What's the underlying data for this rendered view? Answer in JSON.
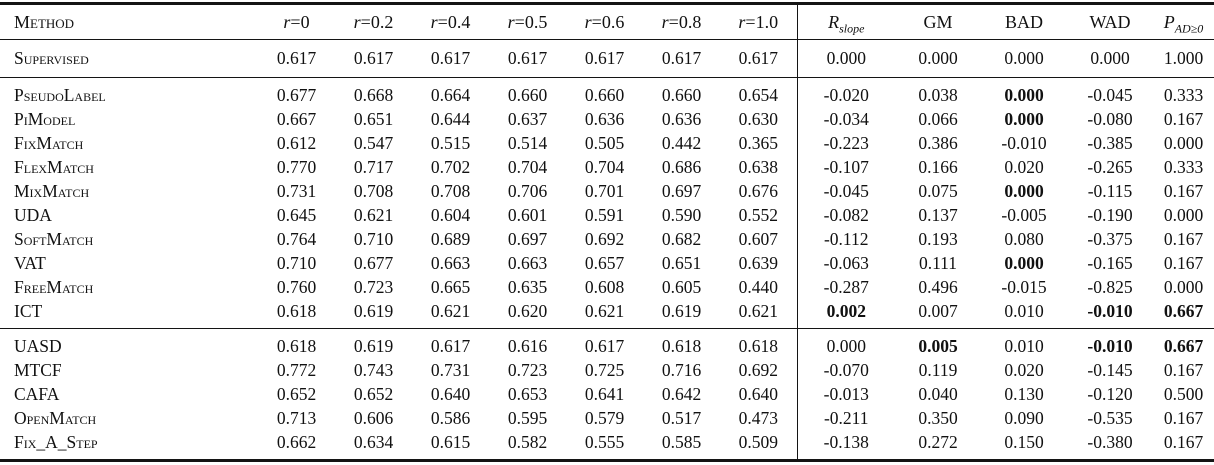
{
  "colors": {
    "text": "#111111",
    "rule": "#141414",
    "background": "#ffffff"
  },
  "table": {
    "columns": [
      {
        "key": "method",
        "type": "method",
        "label": "Method"
      },
      {
        "key": "r0",
        "type": "math",
        "base": "r",
        "rest": "=0"
      },
      {
        "key": "r02",
        "type": "math",
        "base": "r",
        "rest": "=0.2"
      },
      {
        "key": "r04",
        "type": "math",
        "base": "r",
        "rest": "=0.4"
      },
      {
        "key": "r05",
        "type": "math",
        "base": "r",
        "rest": "=0.5"
      },
      {
        "key": "r06",
        "type": "math",
        "base": "r",
        "rest": "=0.6"
      },
      {
        "key": "r08",
        "type": "math",
        "base": "r",
        "rest": "=0.8"
      },
      {
        "key": "r10",
        "type": "math",
        "base": "r",
        "rest": "=1.0"
      },
      {
        "key": "r-slope",
        "type": "math",
        "base": "R",
        "sub": "slope",
        "divider": true
      },
      {
        "key": "gm",
        "type": "plain",
        "label": "GM"
      },
      {
        "key": "bad",
        "type": "plain",
        "label": "BAD"
      },
      {
        "key": "wad",
        "type": "plain",
        "label": "WAD"
      },
      {
        "key": "p-ad-ge0",
        "type": "math",
        "base": "P",
        "sub": "AD≥0"
      }
    ],
    "groups": [
      {
        "rows": [
          {
            "method": "Supervised",
            "values": [
              "0.617",
              "0.617",
              "0.617",
              "0.617",
              "0.617",
              "0.617",
              "0.617"
            ],
            "metrics": [
              "0.000",
              "0.000",
              "0.000",
              "0.000",
              "1.000"
            ],
            "bold_metrics": []
          }
        ]
      },
      {
        "rows": [
          {
            "method": "PseudoLabel",
            "values": [
              "0.677",
              "0.668",
              "0.664",
              "0.660",
              "0.660",
              "0.660",
              "0.654"
            ],
            "metrics": [
              "-0.020",
              "0.038",
              "0.000",
              "-0.045",
              "0.333"
            ],
            "bold_metrics": [
              2
            ]
          },
          {
            "method": "PiModel",
            "values": [
              "0.667",
              "0.651",
              "0.644",
              "0.637",
              "0.636",
              "0.636",
              "0.630"
            ],
            "metrics": [
              "-0.034",
              "0.066",
              "0.000",
              "-0.080",
              "0.167"
            ],
            "bold_metrics": [
              2
            ]
          },
          {
            "method": "FixMatch",
            "values": [
              "0.612",
              "0.547",
              "0.515",
              "0.514",
              "0.505",
              "0.442",
              "0.365"
            ],
            "metrics": [
              "-0.223",
              "0.386",
              "-0.010",
              "-0.385",
              "0.000"
            ],
            "bold_metrics": []
          },
          {
            "method": "FlexMatch",
            "values": [
              "0.770",
              "0.717",
              "0.702",
              "0.704",
              "0.704",
              "0.686",
              "0.638"
            ],
            "metrics": [
              "-0.107",
              "0.166",
              "0.020",
              "-0.265",
              "0.333"
            ],
            "bold_metrics": []
          },
          {
            "method": "MixMatch",
            "values": [
              "0.731",
              "0.708",
              "0.708",
              "0.706",
              "0.701",
              "0.697",
              "0.676"
            ],
            "metrics": [
              "-0.045",
              "0.075",
              "0.000",
              "-0.115",
              "0.167"
            ],
            "bold_metrics": [
              2
            ]
          },
          {
            "method": "UDA",
            "values": [
              "0.645",
              "0.621",
              "0.604",
              "0.601",
              "0.591",
              "0.590",
              "0.552"
            ],
            "metrics": [
              "-0.082",
              "0.137",
              "-0.005",
              "-0.190",
              "0.000"
            ],
            "bold_metrics": []
          },
          {
            "method": "SoftMatch",
            "values": [
              "0.764",
              "0.710",
              "0.689",
              "0.697",
              "0.692",
              "0.682",
              "0.607"
            ],
            "metrics": [
              "-0.112",
              "0.193",
              "0.080",
              "-0.375",
              "0.167"
            ],
            "bold_metrics": []
          },
          {
            "method": "VAT",
            "values": [
              "0.710",
              "0.677",
              "0.663",
              "0.663",
              "0.657",
              "0.651",
              "0.639"
            ],
            "metrics": [
              "-0.063",
              "0.111",
              "0.000",
              "-0.165",
              "0.167"
            ],
            "bold_metrics": [
              2
            ]
          },
          {
            "method": "FreeMatch",
            "values": [
              "0.760",
              "0.723",
              "0.665",
              "0.635",
              "0.608",
              "0.605",
              "0.440"
            ],
            "metrics": [
              "-0.287",
              "0.496",
              "-0.015",
              "-0.825",
              "0.000"
            ],
            "bold_metrics": []
          },
          {
            "method": "ICT",
            "values": [
              "0.618",
              "0.619",
              "0.621",
              "0.620",
              "0.621",
              "0.619",
              "0.621"
            ],
            "metrics": [
              "0.002",
              "0.007",
              "0.010",
              "-0.010",
              "0.667"
            ],
            "bold_metrics": [
              0,
              3,
              4
            ]
          }
        ]
      },
      {
        "rows": [
          {
            "method": "UASD",
            "values": [
              "0.618",
              "0.619",
              "0.617",
              "0.616",
              "0.617",
              "0.618",
              "0.618"
            ],
            "metrics": [
              "0.000",
              "0.005",
              "0.010",
              "-0.010",
              "0.667"
            ],
            "bold_metrics": [
              1,
              3,
              4
            ]
          },
          {
            "method": "MTCF",
            "values": [
              "0.772",
              "0.743",
              "0.731",
              "0.723",
              "0.725",
              "0.716",
              "0.692"
            ],
            "metrics": [
              "-0.070",
              "0.119",
              "0.020",
              "-0.145",
              "0.167"
            ],
            "bold_metrics": []
          },
          {
            "method": "CAFA",
            "values": [
              "0.652",
              "0.652",
              "0.640",
              "0.653",
              "0.641",
              "0.642",
              "0.640"
            ],
            "metrics": [
              "-0.013",
              "0.040",
              "0.130",
              "-0.120",
              "0.500"
            ],
            "bold_metrics": []
          },
          {
            "method": "OpenMatch",
            "values": [
              "0.713",
              "0.606",
              "0.586",
              "0.595",
              "0.579",
              "0.517",
              "0.473"
            ],
            "metrics": [
              "-0.211",
              "0.350",
              "0.090",
              "-0.535",
              "0.167"
            ],
            "bold_metrics": []
          },
          {
            "method": "Fix_A_Step",
            "values": [
              "0.662",
              "0.634",
              "0.615",
              "0.582",
              "0.555",
              "0.585",
              "0.509"
            ],
            "metrics": [
              "-0.138",
              "0.272",
              "0.150",
              "-0.380",
              "0.167"
            ],
            "bold_metrics": []
          }
        ]
      }
    ]
  }
}
